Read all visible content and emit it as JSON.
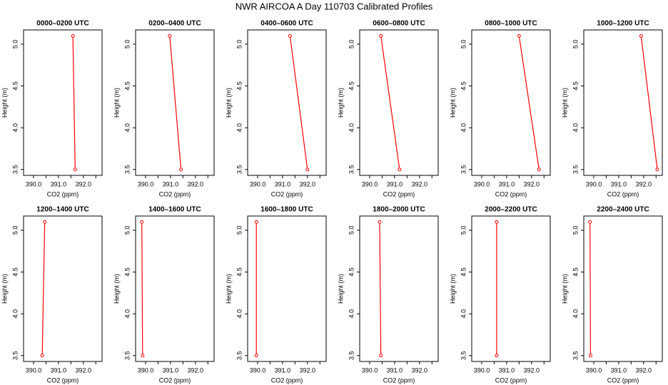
{
  "title": "NWR AIRCOA A  Day 110703  Calibrated Profiles",
  "chart_data": [
    {
      "type": "line",
      "title": "0000–0200 UTC",
      "xlabel": "CO2 (ppm)",
      "ylabel": "Height (m)",
      "x": [
        391.58,
        391.67
      ],
      "values": [
        5.1,
        3.5
      ],
      "color": "#ff0000",
      "xlim": [
        389.6,
        392.75
      ],
      "ylim": [
        3.43,
        5.17
      ],
      "xticks": [
        {
          "value": 390,
          "label": "390.0"
        },
        {
          "value": 391,
          "label": "391.0"
        },
        {
          "value": 392,
          "label": "392.0"
        }
      ],
      "xminor": [
        390.5,
        391.5,
        392.5
      ],
      "yticks": [
        3.5,
        {
          "value": 4,
          "label": "4.0"
        },
        4.5,
        {
          "value": 5,
          "label": "5.0"
        }
      ]
    },
    {
      "type": "line",
      "title": "0200–0400 UTC",
      "xlabel": "CO2 (ppm)",
      "ylabel": "Height (m)",
      "x": [
        390.97,
        391.42
      ],
      "values": [
        5.1,
        3.5
      ],
      "color": "#ff0000",
      "xlim": [
        389.6,
        392.75
      ],
      "ylim": [
        3.43,
        5.17
      ],
      "xticks": [
        {
          "value": 390,
          "label": "390.0"
        },
        {
          "value": 391,
          "label": "391.0"
        },
        {
          "value": 392,
          "label": "392.0"
        }
      ],
      "xminor": [
        390.5,
        391.5,
        392.5
      ],
      "yticks": [
        3.5,
        {
          "value": 4,
          "label": "4.0"
        },
        4.5,
        {
          "value": 5,
          "label": "5.0"
        }
      ]
    },
    {
      "type": "line",
      "title": "0400–0600 UTC",
      "xlabel": "CO2 (ppm)",
      "ylabel": "Height (m)",
      "x": [
        391.3,
        392.0
      ],
      "values": [
        5.1,
        3.5
      ],
      "color": "#ff0000",
      "xlim": [
        389.6,
        392.75
      ],
      "ylim": [
        3.43,
        5.17
      ],
      "xticks": [
        {
          "value": 390,
          "label": "390.0"
        },
        {
          "value": 391,
          "label": "391.0"
        },
        {
          "value": 392,
          "label": "392.0"
        }
      ],
      "xminor": [
        390.5,
        391.5,
        392.5
      ],
      "yticks": [
        3.5,
        {
          "value": 4,
          "label": "4.0"
        },
        4.5,
        {
          "value": 5,
          "label": "5.0"
        }
      ]
    },
    {
      "type": "line",
      "title": "0600–0800 UTC",
      "xlabel": "CO2 (ppm)",
      "ylabel": "Height (m)",
      "x": [
        390.45,
        391.2
      ],
      "values": [
        5.1,
        3.5
      ],
      "color": "#ff0000",
      "xlim": [
        389.6,
        392.75
      ],
      "ylim": [
        3.43,
        5.17
      ],
      "xticks": [
        {
          "value": 390,
          "label": "390.0"
        },
        {
          "value": 391,
          "label": "391.0"
        },
        {
          "value": 392,
          "label": "392.0"
        }
      ],
      "xminor": [
        390.5,
        391.5,
        392.5
      ],
      "yticks": [
        3.5,
        {
          "value": 4,
          "label": "4.0"
        },
        4.5,
        {
          "value": 5,
          "label": "5.0"
        }
      ]
    },
    {
      "type": "line",
      "title": "0800–1000 UTC",
      "xlabel": "CO2 (ppm)",
      "ylabel": "Height (m)",
      "x": [
        391.5,
        392.3
      ],
      "values": [
        5.1,
        3.5
      ],
      "color": "#ff0000",
      "xlim": [
        389.6,
        392.75
      ],
      "ylim": [
        3.43,
        5.17
      ],
      "xticks": [
        {
          "value": 390,
          "label": "390.0"
        },
        {
          "value": 391,
          "label": "391.0"
        },
        {
          "value": 392,
          "label": "392.0"
        }
      ],
      "xminor": [
        390.5,
        391.5,
        392.5
      ],
      "yticks": [
        3.5,
        {
          "value": 4,
          "label": "4.0"
        },
        4.5,
        {
          "value": 5,
          "label": "5.0"
        }
      ]
    },
    {
      "type": "line",
      "title": "1000–1200 UTC",
      "xlabel": "CO2 (ppm)",
      "ylabel": "Height (m)",
      "x": [
        391.9,
        392.55
      ],
      "values": [
        5.1,
        3.5
      ],
      "color": "#ff0000",
      "xlim": [
        389.6,
        392.75
      ],
      "ylim": [
        3.43,
        5.17
      ],
      "xticks": [
        {
          "value": 390,
          "label": "390.0"
        },
        {
          "value": 391,
          "label": "391.0"
        },
        {
          "value": 392,
          "label": "392.0"
        }
      ],
      "xminor": [
        390.5,
        391.5,
        392.5
      ],
      "yticks": [
        3.5,
        {
          "value": 4,
          "label": "4.0"
        },
        4.5,
        {
          "value": 5,
          "label": "5.0"
        }
      ]
    },
    {
      "type": "line",
      "title": "1200–1400 UTC",
      "xlabel": "CO2 (ppm)",
      "ylabel": "Height (m)",
      "x": [
        390.45,
        390.35
      ],
      "values": [
        5.1,
        3.5
      ],
      "color": "#ff0000",
      "xlim": [
        389.6,
        392.75
      ],
      "ylim": [
        3.43,
        5.17
      ],
      "xticks": [
        {
          "value": 390,
          "label": "390.0"
        },
        {
          "value": 391,
          "label": "391.0"
        },
        {
          "value": 392,
          "label": "392.0"
        }
      ],
      "xminor": [
        390.5,
        391.5,
        392.5
      ],
      "yticks": [
        3.5,
        {
          "value": 4,
          "label": "4.0"
        },
        4.5,
        {
          "value": 5,
          "label": "5.0"
        }
      ]
    },
    {
      "type": "line",
      "title": "1400–1600 UTC",
      "xlabel": "CO2 (ppm)",
      "ylabel": "Height (m)",
      "x": [
        389.85,
        389.88
      ],
      "values": [
        5.1,
        3.5
      ],
      "color": "#ff0000",
      "xlim": [
        389.6,
        392.75
      ],
      "ylim": [
        3.43,
        5.17
      ],
      "xticks": [
        {
          "value": 390,
          "label": "390.0"
        },
        {
          "value": 391,
          "label": "391.0"
        },
        {
          "value": 392,
          "label": "392.0"
        }
      ],
      "xminor": [
        390.5,
        391.5,
        392.5
      ],
      "yticks": [
        3.5,
        {
          "value": 4,
          "label": "4.0"
        },
        4.5,
        {
          "value": 5,
          "label": "5.0"
        }
      ]
    },
    {
      "type": "line",
      "title": "1600–1800 UTC",
      "xlabel": "CO2 (ppm)",
      "ylabel": "Height (m)",
      "x": [
        389.95,
        389.95
      ],
      "values": [
        5.1,
        3.5
      ],
      "color": "#ff0000",
      "xlim": [
        389.6,
        392.75
      ],
      "ylim": [
        3.43,
        5.17
      ],
      "xticks": [
        {
          "value": 390,
          "label": "390.0"
        },
        {
          "value": 391,
          "label": "391.0"
        },
        {
          "value": 392,
          "label": "392.0"
        }
      ],
      "xminor": [
        390.5,
        391.5,
        392.5
      ],
      "yticks": [
        3.5,
        {
          "value": 4,
          "label": "4.0"
        },
        4.5,
        {
          "value": 5,
          "label": "5.0"
        }
      ]
    },
    {
      "type": "line",
      "title": "1800–2000 UTC",
      "xlabel": "CO2 (ppm)",
      "ylabel": "Height (m)",
      "x": [
        390.4,
        390.45
      ],
      "values": [
        5.1,
        3.5
      ],
      "color": "#ff0000",
      "xlim": [
        389.6,
        392.75
      ],
      "ylim": [
        3.43,
        5.17
      ],
      "xticks": [
        {
          "value": 390,
          "label": "390.0"
        },
        {
          "value": 391,
          "label": "391.0"
        },
        {
          "value": 392,
          "label": "392.0"
        }
      ],
      "xminor": [
        390.5,
        391.5,
        392.5
      ],
      "yticks": [
        3.5,
        {
          "value": 4,
          "label": "4.0"
        },
        4.5,
        {
          "value": 5,
          "label": "5.0"
        }
      ]
    },
    {
      "type": "line",
      "title": "2000–2200 UTC",
      "xlabel": "CO2 (ppm)",
      "ylabel": "Height (m)",
      "x": [
        390.6,
        390.6
      ],
      "values": [
        5.1,
        3.5
      ],
      "color": "#ff0000",
      "xlim": [
        389.6,
        392.75
      ],
      "ylim": [
        3.43,
        5.17
      ],
      "xticks": [
        {
          "value": 390,
          "label": "390.0"
        },
        {
          "value": 391,
          "label": "391.0"
        },
        {
          "value": 392,
          "label": "392.0"
        }
      ],
      "xminor": [
        390.5,
        391.5,
        392.5
      ],
      "yticks": [
        3.5,
        {
          "value": 4,
          "label": "4.0"
        },
        4.5,
        {
          "value": 5,
          "label": "5.0"
        }
      ]
    },
    {
      "type": "line",
      "title": "2200–2400 UTC",
      "xlabel": "CO2 (ppm)",
      "ylabel": "Height (m)",
      "x": [
        389.85,
        389.87
      ],
      "values": [
        5.1,
        3.5
      ],
      "color": "#ff0000",
      "xlim": [
        389.6,
        392.75
      ],
      "ylim": [
        3.43,
        5.17
      ],
      "xticks": [
        {
          "value": 390,
          "label": "390.0"
        },
        {
          "value": 391,
          "label": "391.0"
        },
        {
          "value": 392,
          "label": "392.0"
        }
      ],
      "xminor": [
        390.5,
        391.5,
        392.5
      ],
      "yticks": [
        3.5,
        {
          "value": 4,
          "label": "4.0"
        },
        4.5,
        {
          "value": 5,
          "label": "5.0"
        }
      ]
    }
  ]
}
